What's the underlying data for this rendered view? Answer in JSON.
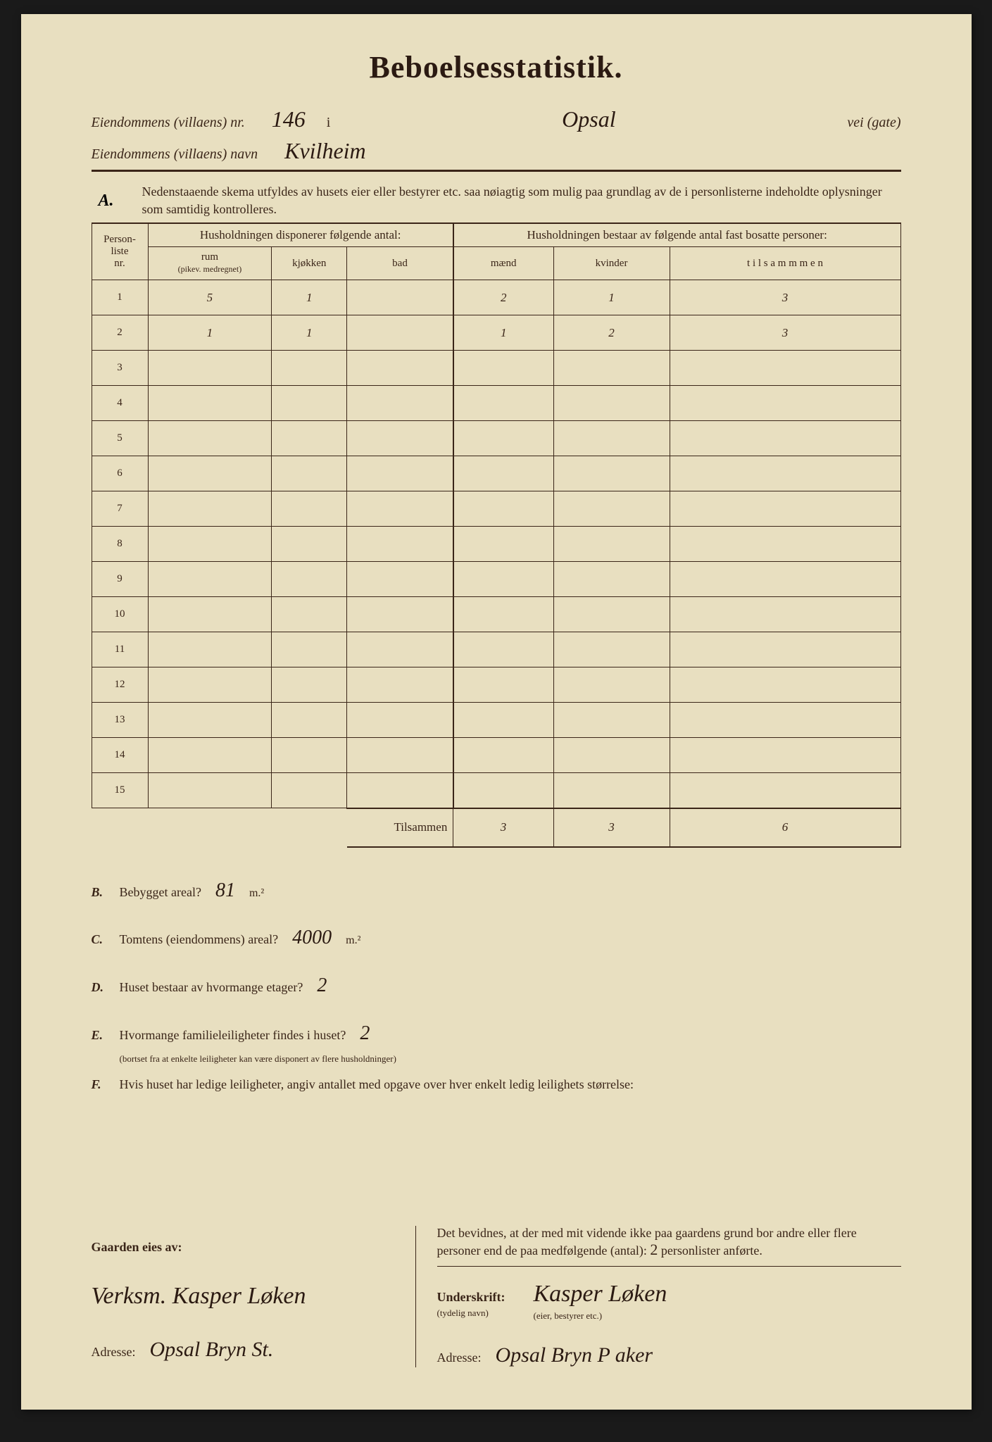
{
  "title": "Beboelsesstatistik.",
  "header": {
    "line1_label": "Eiendommens (villaens) nr.",
    "line1_nr": "146",
    "line1_i": "i",
    "line1_street": "Opsal",
    "line1_suffix": "vei (gate)",
    "line2_label": "Eiendommens (villaens) navn",
    "line2_name": "Kvilheim"
  },
  "sectionA": {
    "letter": "A.",
    "text": "Nedenstaaende skema utfyldes av husets eier eller bestyrer etc. saa nøiagtig som mulig paa grundlag av de i personlisterne indeholdte oplysninger som samtidig kontrolleres."
  },
  "table": {
    "col_personliste": "Person-\nliste\nnr.",
    "hdr_left": "Husholdningen disponerer følgende antal:",
    "hdr_right": "Husholdningen bestaar av følgende antal fast bosatte personer:",
    "sub_rum": "rum",
    "sub_rum_note": "(pikev. medregnet)",
    "sub_kjokken": "kjøkken",
    "sub_bad": "bad",
    "sub_maend": "mænd",
    "sub_kvinder": "kvinder",
    "sub_tilsammen": "t i l s a m m m e n",
    "rows": [
      {
        "nr": "1",
        "rum": "5",
        "kjokken": "1",
        "bad": "",
        "maend": "2",
        "kvinder": "1",
        "tils": "3"
      },
      {
        "nr": "2",
        "rum": "1",
        "kjokken": "1",
        "bad": "",
        "maend": "1",
        "kvinder": "2",
        "tils": "3"
      },
      {
        "nr": "3",
        "rum": "",
        "kjokken": "",
        "bad": "",
        "maend": "",
        "kvinder": "",
        "tils": ""
      },
      {
        "nr": "4",
        "rum": "",
        "kjokken": "",
        "bad": "",
        "maend": "",
        "kvinder": "",
        "tils": ""
      },
      {
        "nr": "5",
        "rum": "",
        "kjokken": "",
        "bad": "",
        "maend": "",
        "kvinder": "",
        "tils": ""
      },
      {
        "nr": "6",
        "rum": "",
        "kjokken": "",
        "bad": "",
        "maend": "",
        "kvinder": "",
        "tils": ""
      },
      {
        "nr": "7",
        "rum": "",
        "kjokken": "",
        "bad": "",
        "maend": "",
        "kvinder": "",
        "tils": ""
      },
      {
        "nr": "8",
        "rum": "",
        "kjokken": "",
        "bad": "",
        "maend": "",
        "kvinder": "",
        "tils": ""
      },
      {
        "nr": "9",
        "rum": "",
        "kjokken": "",
        "bad": "",
        "maend": "",
        "kvinder": "",
        "tils": ""
      },
      {
        "nr": "10",
        "rum": "",
        "kjokken": "",
        "bad": "",
        "maend": "",
        "kvinder": "",
        "tils": ""
      },
      {
        "nr": "11",
        "rum": "",
        "kjokken": "",
        "bad": "",
        "maend": "",
        "kvinder": "",
        "tils": ""
      },
      {
        "nr": "12",
        "rum": "",
        "kjokken": "",
        "bad": "",
        "maend": "",
        "kvinder": "",
        "tils": ""
      },
      {
        "nr": "13",
        "rum": "",
        "kjokken": "",
        "bad": "",
        "maend": "",
        "kvinder": "",
        "tils": ""
      },
      {
        "nr": "14",
        "rum": "",
        "kjokken": "",
        "bad": "",
        "maend": "",
        "kvinder": "",
        "tils": ""
      },
      {
        "nr": "15",
        "rum": "",
        "kjokken": "",
        "bad": "",
        "maend": "",
        "kvinder": "",
        "tils": ""
      }
    ],
    "tilsammen_label": "Tilsammen",
    "total_maend": "3",
    "total_kvinder": "3",
    "total_tils": "6"
  },
  "questions": {
    "B": {
      "letter": "B.",
      "text": "Bebygget areal?",
      "ans": "81",
      "unit": "m.²"
    },
    "C": {
      "letter": "C.",
      "text": "Tomtens (eiendommens) areal?",
      "ans": "4000",
      "unit": "m.²"
    },
    "D": {
      "letter": "D.",
      "text": "Huset bestaar av hvormange etager?",
      "ans": "2"
    },
    "E": {
      "letter": "E.",
      "text": "Hvormange familieleiligheter findes i huset?",
      "ans": "2",
      "small": "(bortset fra at enkelte leiligheter kan være disponert av flere husholdninger)"
    },
    "F": {
      "letter": "F.",
      "text": "Hvis huset har ledige leiligheter, angiv antallet med opgave over hver enkelt ledig leilighets størrelse:"
    }
  },
  "footer": {
    "left_label": "Gaarden eies av:",
    "owner": "Verksm. Kasper Løken",
    "addr_label": "Adresse:",
    "owner_addr": "Opsal Bryn St.",
    "right_text_1": "Det bevidnes, at der med mit vidende ikke paa gaardens grund bor andre eller flere personer end de paa medfølgende (antal):",
    "right_antal": "2",
    "right_text_2": "personlister anførte.",
    "sign_label": "Underskrift:",
    "sign_small": "(tydelig navn)",
    "signature": "Kasper Løken",
    "sign_role": "(eier, bestyrer etc.)",
    "right_addr": "Opsal Bryn P aker"
  },
  "colors": {
    "paper": "#e8dfc0",
    "ink_print": "#3a2518",
    "ink_hand": "#2b1a12",
    "background": "#1a1a1a"
  }
}
